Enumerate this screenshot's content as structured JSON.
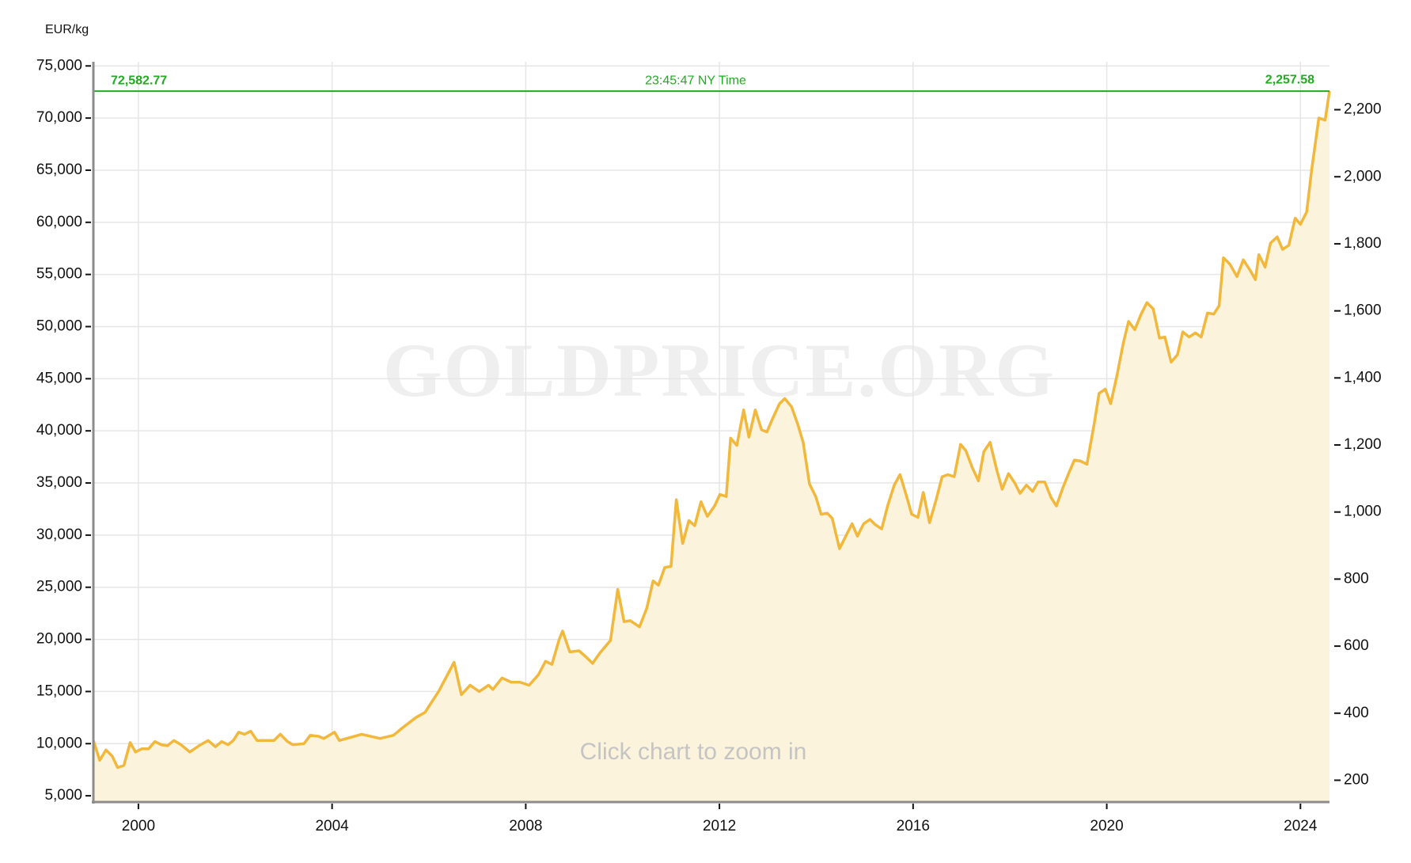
{
  "chart_data": {
    "type": "line",
    "ylabel": "EUR/kg",
    "watermark": "GOLDPRICE.ORG",
    "hint": "Click chart to zoom in",
    "color": "#f2b83c",
    "fill_color": "#fcf3dc",
    "grid": true,
    "xlim": [
      1999.07,
      2024.6
    ],
    "xticks": [
      2000,
      2004,
      2008,
      2012,
      2016,
      2020,
      2024
    ],
    "ylim": [
      4400,
      75400
    ],
    "yticks": [
      {
        "value": 5000,
        "label": "5,000"
      },
      {
        "value": 10000,
        "label": "10,000"
      },
      {
        "value": 15000,
        "label": "15,000"
      },
      {
        "value": 20000,
        "label": "20,000"
      },
      {
        "value": 25000,
        "label": "25,000"
      },
      {
        "value": 30000,
        "label": "30,000"
      },
      {
        "value": 35000,
        "label": "35,000"
      },
      {
        "value": 40000,
        "label": "40,000"
      },
      {
        "value": 45000,
        "label": "45,000"
      },
      {
        "value": 50000,
        "label": "50,000"
      },
      {
        "value": 55000,
        "label": "55,000"
      },
      {
        "value": 60000,
        "label": "60,000"
      },
      {
        "value": 65000,
        "label": "65,000"
      },
      {
        "value": 70000,
        "label": "70,000"
      },
      {
        "value": 75000,
        "label": "75,000"
      }
    ],
    "y2lim": [
      135,
      2343
    ],
    "y2ticks": [
      200,
      400,
      600,
      800,
      {
        "value": 1000,
        "label": "1,000"
      },
      {
        "value": 1200,
        "label": "1,200"
      },
      {
        "value": 1400,
        "label": "1,400"
      },
      {
        "value": 1600,
        "label": "1,600"
      },
      {
        "value": 1800,
        "label": "1,800"
      },
      {
        "value": 2000,
        "label": "2,000"
      },
      {
        "value": 2200,
        "label": "2,200"
      }
    ],
    "price_line": {
      "value": 72582.77,
      "label": "72,582.77",
      "time": "23:45:47 NY Time",
      "y2_value": 2257.58,
      "y2_label": "2,257.58",
      "color": "#22aa22"
    },
    "x": [
      1999.07,
      1999.2,
      1999.33,
      1999.46,
      1999.57,
      1999.7,
      1999.83,
      1999.94,
      2000.07,
      2000.21,
      2000.34,
      2000.47,
      2000.6,
      2000.73,
      2000.88,
      2001.06,
      2001.25,
      2001.44,
      2001.59,
      2001.72,
      2001.85,
      2001.96,
      2002.07,
      2002.19,
      2002.32,
      2002.45,
      2002.65,
      2002.8,
      2002.93,
      2003.08,
      2003.19,
      2003.42,
      2003.55,
      2003.72,
      2003.83,
      2004.05,
      2004.15,
      2004.61,
      2004.99,
      2005.27,
      2005.45,
      2005.73,
      2005.92,
      2006.2,
      2006.52,
      2006.67,
      2006.85,
      2007.04,
      2007.23,
      2007.32,
      2007.51,
      2007.7,
      2007.88,
      2008.07,
      2008.26,
      2008.41,
      2008.54,
      2008.69,
      2008.76,
      2008.91,
      2009.1,
      2009.25,
      2009.38,
      2009.53,
      2009.75,
      2009.9,
      2010.03,
      2010.16,
      2010.35,
      2010.5,
      2010.63,
      2010.74,
      2010.87,
      2011.0,
      2011.11,
      2011.24,
      2011.37,
      2011.49,
      2011.62,
      2011.75,
      2011.9,
      2012.01,
      2012.14,
      2012.23,
      2012.36,
      2012.5,
      2012.61,
      2012.74,
      2012.87,
      2012.98,
      2013.11,
      2013.24,
      2013.35,
      2013.49,
      2013.62,
      2013.73,
      2013.86,
      2013.99,
      2014.1,
      2014.23,
      2014.33,
      2014.48,
      2014.61,
      2014.74,
      2014.85,
      2014.98,
      2015.11,
      2015.22,
      2015.35,
      2015.48,
      2015.61,
      2015.73,
      2015.86,
      2015.97,
      2016.1,
      2016.21,
      2016.34,
      2016.47,
      2016.6,
      2016.72,
      2016.85,
      2016.98,
      2017.09,
      2017.22,
      2017.35,
      2017.46,
      2017.59,
      2017.73,
      2017.84,
      2017.97,
      2018.1,
      2018.21,
      2018.34,
      2018.47,
      2018.58,
      2018.72,
      2018.85,
      2018.96,
      2019.09,
      2019.22,
      2019.33,
      2019.46,
      2019.59,
      2019.74,
      2019.84,
      2019.97,
      2020.08,
      2020.21,
      2020.34,
      2020.45,
      2020.58,
      2020.71,
      2020.83,
      2020.96,
      2021.09,
      2021.2,
      2021.33,
      2021.46,
      2021.57,
      2021.7,
      2021.83,
      2021.95,
      2022.08,
      2022.21,
      2022.32,
      2022.41,
      2022.54,
      2022.69,
      2022.82,
      2022.96,
      2023.07,
      2023.14,
      2023.27,
      2023.38,
      2023.52,
      2023.63,
      2023.76,
      2023.89,
      2024.0,
      2024.13,
      2024.23,
      2024.38,
      2024.51,
      2024.6
    ],
    "values": [
      10300,
      8400,
      9400,
      8800,
      7700,
      7900,
      10100,
      9200,
      9500,
      9500,
      10200,
      9900,
      9800,
      10300,
      9900,
      9200,
      9800,
      10300,
      9700,
      10200,
      9900,
      10300,
      11100,
      10900,
      11200,
      10300,
      10300,
      10300,
      10900,
      10200,
      9900,
      10000,
      10800,
      10700,
      10500,
      11100,
      10300,
      10900,
      10500,
      10800,
      11500,
      12500,
      13000,
      15000,
      17800,
      14700,
      15600,
      15000,
      15600,
      15200,
      16300,
      15900,
      15900,
      15600,
      16600,
      17900,
      17600,
      20000,
      20800,
      18800,
      18900,
      18300,
      17700,
      18700,
      19900,
      24800,
      21700,
      21800,
      21200,
      23000,
      25600,
      25200,
      26900,
      27000,
      33400,
      29200,
      31400,
      30900,
      33200,
      31800,
      32800,
      33900,
      33700,
      39300,
      38600,
      42000,
      39400,
      42000,
      40100,
      39900,
      41300,
      42600,
      43100,
      42300,
      40600,
      38900,
      34900,
      33700,
      32000,
      32100,
      31600,
      28700,
      29900,
      31100,
      29900,
      31100,
      31500,
      31000,
      30600,
      32900,
      34800,
      35800,
      33800,
      32000,
      31700,
      34100,
      31200,
      33300,
      35600,
      35800,
      35600,
      38700,
      38100,
      36500,
      35200,
      38000,
      38900,
      36200,
      34400,
      35900,
      35000,
      34000,
      34800,
      34200,
      35100,
      35100,
      33600,
      32800,
      34500,
      36000,
      37200,
      37100,
      36800,
      40700,
      43600,
      44000,
      42600,
      45300,
      48400,
      50500,
      49700,
      51200,
      52300,
      51700,
      48900,
      49000,
      46600,
      47300,
      49500,
      49000,
      49400,
      49000,
      51300,
      51200,
      52000,
      56600,
      56000,
      54800,
      56400,
      55400,
      54500,
      56900,
      55700,
      58000,
      58600,
      57400,
      57800,
      60400,
      59800,
      61000,
      65000,
      70000,
      69800,
      72600
    ]
  }
}
